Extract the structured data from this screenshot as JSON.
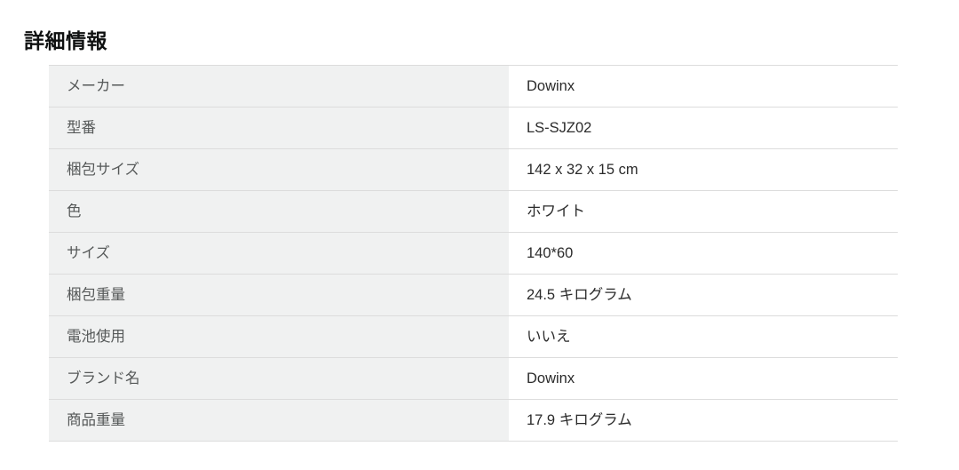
{
  "page": {
    "title": "詳細情報"
  },
  "colors": {
    "label_cell_background": "#f0f1f1",
    "row_border": "#dcdcdc",
    "label_text": "#565959",
    "value_text": "#2b2b2b",
    "title_text": "#0f1111"
  },
  "details_table": {
    "rows": [
      {
        "label": "メーカー",
        "value": "Dowinx"
      },
      {
        "label": "型番",
        "value": "LS-SJZ02"
      },
      {
        "label": "梱包サイズ",
        "value": "142 x 32 x 15 cm"
      },
      {
        "label": "色",
        "value": "ホワイト"
      },
      {
        "label": "サイズ",
        "value": "140*60"
      },
      {
        "label": "梱包重量",
        "value": "24.5 キログラム"
      },
      {
        "label": "電池使用",
        "value": "いいえ"
      },
      {
        "label": "ブランド名",
        "value": "Dowinx"
      },
      {
        "label": "商品重量",
        "value": "17.9 キログラム"
      }
    ]
  }
}
